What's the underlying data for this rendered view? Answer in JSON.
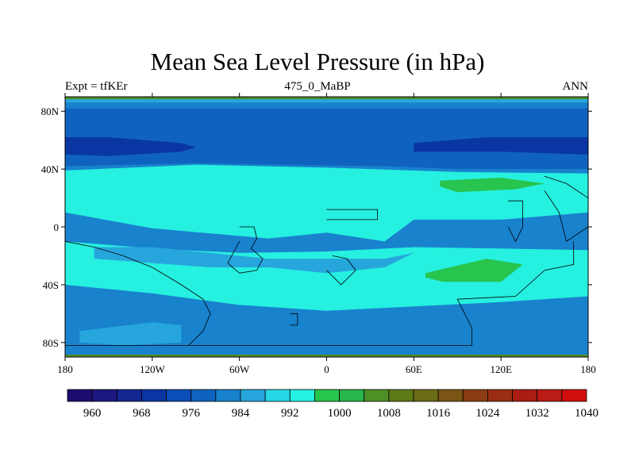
{
  "title": "Mean Sea Level Pressure (in hPa)",
  "subtitle_left": "Expt = tfKEr",
  "subtitle_center": "475_0_MaBP",
  "subtitle_right": "ANN",
  "map": {
    "projection": "cylindrical equidistant",
    "lon_range": [
      -180,
      180
    ],
    "lat_range": [
      -90,
      90
    ],
    "lon_ticks": [
      {
        "v": -180,
        "label": "180"
      },
      {
        "v": -120,
        "label": "120W"
      },
      {
        "v": -60,
        "label": "60W"
      },
      {
        "v": 0,
        "label": "0"
      },
      {
        "v": 60,
        "label": "60E"
      },
      {
        "v": 120,
        "label": "120E"
      },
      {
        "v": 180,
        "label": "180"
      }
    ],
    "lat_ticks": [
      {
        "v": 80,
        "label": "80N"
      },
      {
        "v": 40,
        "label": "40N"
      },
      {
        "v": 0,
        "label": "0"
      },
      {
        "v": -40,
        "label": "40S"
      },
      {
        "v": -80,
        "label": "80S"
      }
    ]
  },
  "colorbar": {
    "colors": [
      "#1e0c6e",
      "#1c1880",
      "#142792",
      "#0a36a3",
      "#0b4eb8",
      "#0f63bf",
      "#1882cd",
      "#26a6dc",
      "#27d6e6",
      "#26f0e0",
      "#27c44e",
      "#28b54a",
      "#4e8f26",
      "#5e7a18",
      "#6a6c17",
      "#7a5514",
      "#8b3c12",
      "#9a2d12",
      "#aa1c12",
      "#b91c14",
      "#d00e0e"
    ],
    "labels": [
      {
        "pos": 1,
        "text": "960"
      },
      {
        "pos": 3,
        "text": "968"
      },
      {
        "pos": 5,
        "text": "976"
      },
      {
        "pos": 7,
        "text": "984"
      },
      {
        "pos": 9,
        "text": "992"
      },
      {
        "pos": 11,
        "text": "1000"
      },
      {
        "pos": 13,
        "text": "1008"
      },
      {
        "pos": 15,
        "text": "1016"
      },
      {
        "pos": 17,
        "text": "1024"
      },
      {
        "pos": 19,
        "text": "1032"
      },
      {
        "pos": 21,
        "text": "1040"
      }
    ]
  },
  "fields": [
    {
      "name": "north-pole-band",
      "color": "#26a6dc",
      "path": [
        [
          -180,
          90
        ],
        [
          180,
          90
        ],
        [
          180,
          86
        ],
        [
          -180,
          86
        ]
      ]
    },
    {
      "name": "southern-polar-band",
      "color": "#1882cd",
      "path": [
        [
          -180,
          -74
        ],
        [
          180,
          -74
        ],
        [
          180,
          -90
        ],
        [
          -180,
          -90
        ]
      ]
    },
    {
      "name": "southern-mid-band",
      "color": "#1882cd",
      "path": [
        [
          -180,
          -44
        ],
        [
          180,
          -44
        ],
        [
          180,
          -74
        ],
        [
          -180,
          -74
        ]
      ]
    },
    {
      "name": "northern-trough",
      "color": "#0f63bf",
      "path": [
        [
          -180,
          82
        ],
        [
          180,
          82
        ],
        [
          180,
          40
        ],
        [
          90,
          40
        ],
        [
          40,
          42
        ],
        [
          -30,
          43
        ],
        [
          -90,
          44
        ],
        [
          -180,
          42
        ]
      ]
    },
    {
      "name": "northern-deep-low-west",
      "color": "#0a36a3",
      "path": [
        [
          -180,
          62
        ],
        [
          -150,
          62
        ],
        [
          -100,
          58
        ],
        [
          -90,
          55
        ],
        [
          -100,
          52
        ],
        [
          -150,
          49
        ],
        [
          -180,
          50
        ]
      ]
    },
    {
      "name": "northern-deep-low-east",
      "color": "#0a36a3",
      "path": [
        [
          60,
          58
        ],
        [
          110,
          62
        ],
        [
          180,
          62
        ],
        [
          180,
          50
        ],
        [
          120,
          52
        ],
        [
          60,
          52
        ]
      ]
    },
    {
      "name": "tropical-belt",
      "color": "#26f0e0",
      "path": [
        [
          -180,
          39
        ],
        [
          -90,
          43
        ],
        [
          0,
          41
        ],
        [
          90,
          38
        ],
        [
          180,
          37
        ],
        [
          180,
          10
        ],
        [
          120,
          5
        ],
        [
          60,
          5
        ],
        [
          40,
          -10
        ],
        [
          0,
          -4
        ],
        [
          -40,
          -8
        ],
        [
          -120,
          -1
        ],
        [
          -180,
          10
        ]
      ]
    },
    {
      "name": "southern-subtropical-belt",
      "color": "#26f0e0",
      "path": [
        [
          -180,
          -10
        ],
        [
          -120,
          -15
        ],
        [
          -60,
          -18
        ],
        [
          0,
          -17
        ],
        [
          60,
          -14
        ],
        [
          120,
          -15
        ],
        [
          180,
          -16
        ],
        [
          180,
          -48
        ],
        [
          120,
          -52
        ],
        [
          60,
          -55
        ],
        [
          0,
          -58
        ],
        [
          -60,
          -54
        ],
        [
          -120,
          -46
        ],
        [
          -180,
          -40
        ]
      ]
    },
    {
      "name": "southern-subtropical-inner",
      "color": "#26a6dc",
      "path": [
        [
          -160,
          -14
        ],
        [
          -120,
          -14
        ],
        [
          -80,
          -18
        ],
        [
          -40,
          -22
        ],
        [
          0,
          -22
        ],
        [
          40,
          -22
        ],
        [
          60,
          -18
        ],
        [
          40,
          -28
        ],
        [
          0,
          -32
        ],
        [
          -40,
          -28
        ],
        [
          -80,
          -28
        ],
        [
          -120,
          -25
        ],
        [
          -160,
          -22
        ]
      ]
    },
    {
      "name": "northern-high",
      "color": "#27c44e",
      "path": [
        [
          78,
          32
        ],
        [
          120,
          34
        ],
        [
          150,
          30
        ],
        [
          130,
          26
        ],
        [
          90,
          24
        ],
        [
          78,
          28
        ]
      ]
    },
    {
      "name": "southern-high",
      "color": "#27c44e",
      "path": [
        [
          68,
          -32
        ],
        [
          110,
          -22
        ],
        [
          135,
          -26
        ],
        [
          120,
          -38
        ],
        [
          80,
          -38
        ],
        [
          68,
          -35
        ]
      ]
    },
    {
      "name": "antarctic-low-west",
      "color": "#26a6dc",
      "path": [
        [
          -170,
          -72
        ],
        [
          -120,
          -66
        ],
        [
          -100,
          -68
        ],
        [
          -100,
          -80
        ],
        [
          -140,
          -82
        ],
        [
          -170,
          -80
        ]
      ]
    }
  ],
  "coastlines": [
    {
      "name": "coastline-africa",
      "path": [
        [
          -60,
          0
        ],
        [
          -50,
          0
        ],
        [
          -48,
          -8
        ],
        [
          -52,
          -15
        ],
        [
          -44,
          -22
        ],
        [
          -48,
          -30
        ],
        [
          -60,
          -32
        ],
        [
          -68,
          -25
        ],
        [
          -60,
          -10
        ]
      ]
    },
    {
      "name": "coastline-south-america-west",
      "path": [
        [
          -180,
          -10
        ],
        [
          -160,
          -14
        ],
        [
          -140,
          -20
        ],
        [
          -120,
          -28
        ],
        [
          -100,
          -40
        ],
        [
          -85,
          -50
        ],
        [
          -80,
          -60
        ],
        [
          -85,
          -72
        ],
        [
          -95,
          -82
        ],
        [
          -180,
          -82
        ]
      ]
    },
    {
      "name": "coastline-antarctica",
      "path": [
        [
          -95,
          -82
        ],
        [
          100,
          -82
        ],
        [
          100,
          -70
        ],
        [
          90,
          -50
        ],
        [
          130,
          -48
        ],
        [
          150,
          -30
        ],
        [
          170,
          -26
        ],
        [
          170,
          -10
        ]
      ]
    },
    {
      "name": "coastline-small-continent",
      "path": [
        [
          0,
          -30
        ],
        [
          10,
          -40
        ],
        [
          20,
          -30
        ],
        [
          14,
          -22
        ],
        [
          4,
          -20
        ]
      ]
    },
    {
      "name": "coastline-east-island",
      "path": [
        [
          125,
          18
        ],
        [
          135,
          18
        ],
        [
          135,
          0
        ],
        [
          130,
          -10
        ],
        [
          125,
          0
        ]
      ]
    },
    {
      "name": "coastline-north-east",
      "path": [
        [
          150,
          35
        ],
        [
          165,
          30
        ],
        [
          180,
          20
        ],
        [
          180,
          0
        ],
        [
          165,
          -10
        ],
        [
          160,
          10
        ],
        [
          150,
          25
        ]
      ]
    },
    {
      "name": "coastline-north-island",
      "path": [
        [
          0,
          12
        ],
        [
          35,
          12
        ],
        [
          35,
          5
        ],
        [
          0,
          5
        ]
      ]
    },
    {
      "name": "coastline-southern-islands",
      "path": [
        [
          -25,
          -60
        ],
        [
          -20,
          -60
        ],
        [
          -20,
          -68
        ],
        [
          -25,
          -68
        ]
      ]
    }
  ]
}
